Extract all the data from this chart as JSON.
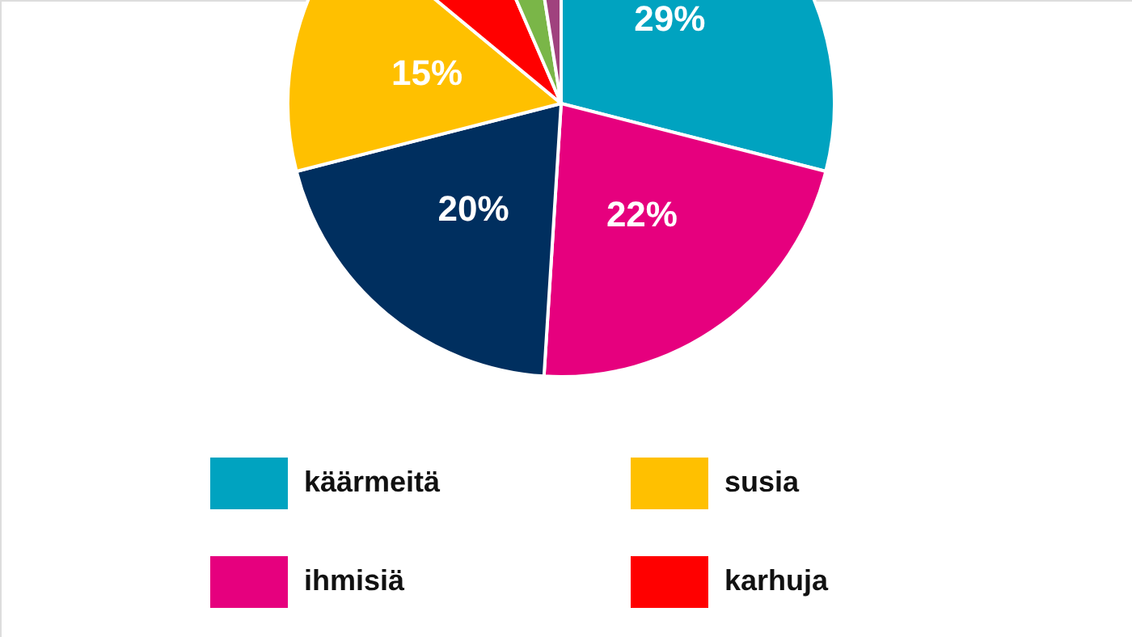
{
  "chart_data": {
    "type": "pie",
    "categories": [
      "käärmeitä",
      "ihmisiä",
      null,
      "susia",
      "karhuja",
      null,
      null
    ],
    "values": [
      29,
      22,
      20,
      15,
      7.5,
      4,
      2.5
    ],
    "value_labels": [
      "29%",
      "22%",
      "20%",
      "15%",
      null,
      null,
      null
    ],
    "colors": [
      "#00a3c0",
      "#e6007e",
      "#002f5f",
      "#ffc000",
      "#ff0000",
      "#7ab648",
      "#a0427e"
    ],
    "legend": "bottom"
  }
}
